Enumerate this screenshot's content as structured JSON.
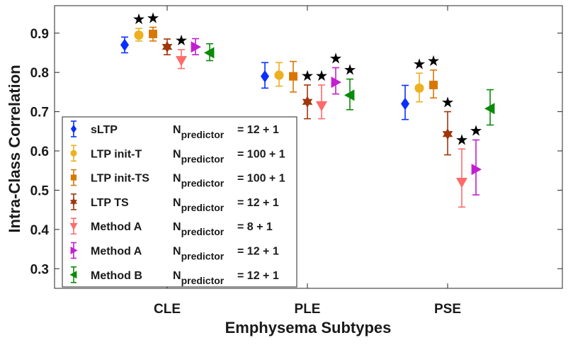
{
  "chart_data": {
    "type": "errorbar",
    "xlabel": "Emphysema Subtypes",
    "ylabel": "Intra-Class Correlation",
    "categories": [
      "CLE",
      "PLE",
      "PSE"
    ],
    "ylim": [
      0.25,
      0.97
    ],
    "yticks": [
      "0.3",
      "0.4",
      "0.5",
      "0.6",
      "0.7",
      "0.8",
      "0.9"
    ],
    "series": [
      {
        "name": "sLTP",
        "npred_label": "N",
        "npred_sub": "predictor",
        "npred_value": "= 12 + 1",
        "color": "#0a2fff",
        "marker": "diamond",
        "values": [
          0.87,
          0.79,
          0.72
        ],
        "lower": [
          0.85,
          0.76,
          0.68
        ],
        "upper": [
          0.89,
          0.825,
          0.767
        ],
        "star": [
          false,
          false,
          false
        ]
      },
      {
        "name": "LTP init-T",
        "npred_label": "N",
        "npred_sub": "predictor",
        "npred_value": "= 100 + 1",
        "color": "#edb120",
        "marker": "circle",
        "values": [
          0.895,
          0.793,
          0.76
        ],
        "lower": [
          0.88,
          0.765,
          0.725
        ],
        "upper": [
          0.912,
          0.825,
          0.798
        ],
        "star": [
          true,
          false,
          true
        ]
      },
      {
        "name": "LTP init-TS",
        "npred_label": "N",
        "npred_sub": "predictor",
        "npred_value": "= 100 + 1",
        "color": "#d97706",
        "marker": "square",
        "values": [
          0.898,
          0.79,
          0.768
        ],
        "lower": [
          0.88,
          0.75,
          0.735
        ],
        "upper": [
          0.915,
          0.828,
          0.806
        ],
        "star": [
          true,
          false,
          true
        ]
      },
      {
        "name": "LTP TS",
        "npred_label": "N",
        "npred_sub": "predictor",
        "npred_value": "= 12 + 1",
        "color": "#a0360c",
        "marker": "hexagram",
        "values": [
          0.865,
          0.725,
          0.643
        ],
        "lower": [
          0.845,
          0.682,
          0.59
        ],
        "upper": [
          0.885,
          0.768,
          0.7
        ],
        "star": [
          false,
          true,
          true
        ]
      },
      {
        "name": "Method A",
        "npred_label": "N",
        "npred_sub": "predictor",
        "npred_value": "= 8 + 1",
        "color": "#ff6b6b",
        "marker": "triangle-down",
        "values": [
          0.83,
          0.715,
          0.52
        ],
        "lower": [
          0.81,
          0.682,
          0.457
        ],
        "upper": [
          0.858,
          0.768,
          0.605
        ],
        "star": [
          true,
          true,
          true
        ]
      },
      {
        "name": "Method A",
        "npred_label": "N",
        "npred_sub": "predictor",
        "npred_value": "= 12 + 1",
        "color": "#c21fcf",
        "marker": "triangle-right",
        "values": [
          0.865,
          0.775,
          0.553
        ],
        "lower": [
          0.845,
          0.745,
          0.488
        ],
        "upper": [
          0.886,
          0.812,
          0.628
        ],
        "star": [
          false,
          true,
          true
        ]
      },
      {
        "name": "Method B",
        "npred_label": "N",
        "npred_sub": "predictor",
        "npred_value": "= 12 + 1",
        "color": "#0b8a0b",
        "marker": "triangle-left",
        "values": [
          0.85,
          0.742,
          0.708
        ],
        "lower": [
          0.83,
          0.705,
          0.666
        ],
        "upper": [
          0.873,
          0.783,
          0.756
        ],
        "star": [
          false,
          true,
          false
        ]
      }
    ],
    "significance_marker": "★",
    "legend_position": "bottom-left",
    "grid": false
  }
}
